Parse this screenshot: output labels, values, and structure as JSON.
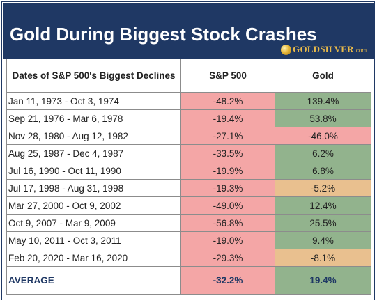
{
  "title": "Gold During Biggest Stock Crashes",
  "logo": {
    "name": "GOLDSILVER",
    "tld": ".com",
    "icon": "gold-coin-icon"
  },
  "colors": {
    "banner": "#1f3864",
    "header_text": "#1f3864",
    "negative_fill": "#f4a6a6",
    "positive_fill": "#92b38d",
    "mild_negative_fill": "#e9c08f"
  },
  "chart_data": {
    "type": "table",
    "title": "Gold During Biggest Stock Crashes",
    "columns": [
      "Dates of S&P 500's Biggest Declines",
      "S&P 500",
      "Gold"
    ],
    "rows": [
      {
        "dates": "Jan 11, 1973 - Oct 3, 1974",
        "sp500": "-48.2%",
        "gold": "139.4%",
        "sp500_value": -48.2,
        "gold_value": 139.4
      },
      {
        "dates": "Sep 21, 1976 - Mar 6, 1978",
        "sp500": "-19.4%",
        "gold": "53.8%",
        "sp500_value": -19.4,
        "gold_value": 53.8
      },
      {
        "dates": "Nov 28, 1980 - Aug 12, 1982",
        "sp500": "-27.1%",
        "gold": "-46.0%",
        "sp500_value": -27.1,
        "gold_value": -46.0
      },
      {
        "dates": "Aug 25, 1987 - Dec 4, 1987",
        "sp500": "-33.5%",
        "gold": "6.2%",
        "sp500_value": -33.5,
        "gold_value": 6.2
      },
      {
        "dates": "Jul 16, 1990 - Oct 11, 1990",
        "sp500": "-19.9%",
        "gold": "6.8%",
        "sp500_value": -19.9,
        "gold_value": 6.8
      },
      {
        "dates": "Jul 17, 1998 - Aug 31, 1998",
        "sp500": "-19.3%",
        "gold": "-5.2%",
        "sp500_value": -19.3,
        "gold_value": -5.2
      },
      {
        "dates": "Mar 27, 2000 - Oct 9, 2002",
        "sp500": "-49.0%",
        "gold": "12.4%",
        "sp500_value": -49.0,
        "gold_value": 12.4
      },
      {
        "dates": "Oct 9, 2007 - Mar 9, 2009",
        "sp500": "-56.8%",
        "gold": "25.5%",
        "sp500_value": -56.8,
        "gold_value": 25.5
      },
      {
        "dates": "May 10, 2011 - Oct 3, 2011",
        "sp500": "-19.0%",
        "gold": "9.4%",
        "sp500_value": -19.0,
        "gold_value": 9.4
      },
      {
        "dates": "Feb 20, 2020 - Mar 16, 2020",
        "sp500": "-29.3%",
        "gold": "-8.1%",
        "sp500_value": -29.3,
        "gold_value": -8.1
      }
    ],
    "average": {
      "label": "AVERAGE",
      "sp500": "-32.2%",
      "gold": "19.4%",
      "sp500_value": -32.2,
      "gold_value": 19.4
    }
  }
}
